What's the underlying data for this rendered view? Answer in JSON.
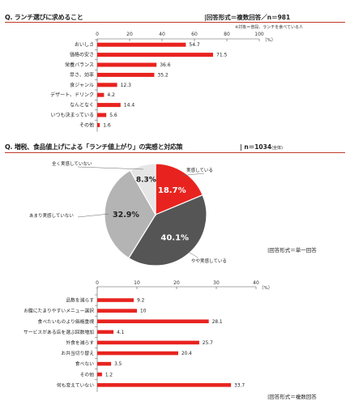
{
  "section1": {
    "title": "Q. ランチ選びに求めること",
    "answer_format": "|回答形式＝複数回答／n＝981",
    "note": "※対象＝普段、ランチを食べている人",
    "unit": "（%）"
  },
  "section2": {
    "title": "Q. 増税、食品値上げによる「ランチ値上がり」の実感と対応策",
    "sample": "| n＝1034",
    "sample_suffix": "(全体)",
    "answer_format": "|回答形式＝単一回答"
  },
  "section3": {
    "unit": "（%）",
    "answer_format": "|回答形式＝複数回答"
  },
  "chart_data": [
    {
      "type": "bar",
      "orientation": "horizontal",
      "categories": [
        "おいしさ",
        "価格の安さ",
        "栄養バランス",
        "早さ、効率",
        "食ジャンル",
        "デザート、ドリンク",
        "なんとなく",
        "いつも決まっている",
        "その他"
      ],
      "values": [
        54.7,
        71.5,
        36.6,
        35.2,
        12.3,
        4.2,
        14.4,
        5.6,
        1.6
      ],
      "xticks": [
        0,
        20,
        40,
        60,
        80,
        100
      ],
      "xlim": [
        0,
        100
      ],
      "color": "#e8231f"
    },
    {
      "type": "pie",
      "labels": [
        "実感している",
        "やや実感している",
        "あまり実感していない",
        "全く実感していない"
      ],
      "values": [
        18.7,
        40.1,
        32.9,
        8.3
      ],
      "value_labels": [
        "18.7%",
        "40.1%",
        "32.9%",
        "8.3%"
      ],
      "colors": [
        "#e8231f",
        "#555555",
        "#b4b4b4",
        "#e6e6e6"
      ]
    },
    {
      "type": "bar",
      "orientation": "horizontal",
      "categories": [
        "品数を減らす",
        "お腹にたまりやすいメニュー選択",
        "食べたいものより価格重視",
        "サービスがある店を選ぶ回数増加",
        "外食を減らす",
        "お弁当切り替え",
        "食べない",
        "その他",
        "何も変えていない"
      ],
      "values": [
        9.2,
        10.0,
        28.1,
        4.1,
        25.7,
        20.4,
        3.5,
        1.2,
        33.7
      ],
      "xticks": [
        0,
        10,
        20,
        30,
        40
      ],
      "xlim": [
        0,
        40
      ],
      "color": "#e8231f"
    }
  ]
}
